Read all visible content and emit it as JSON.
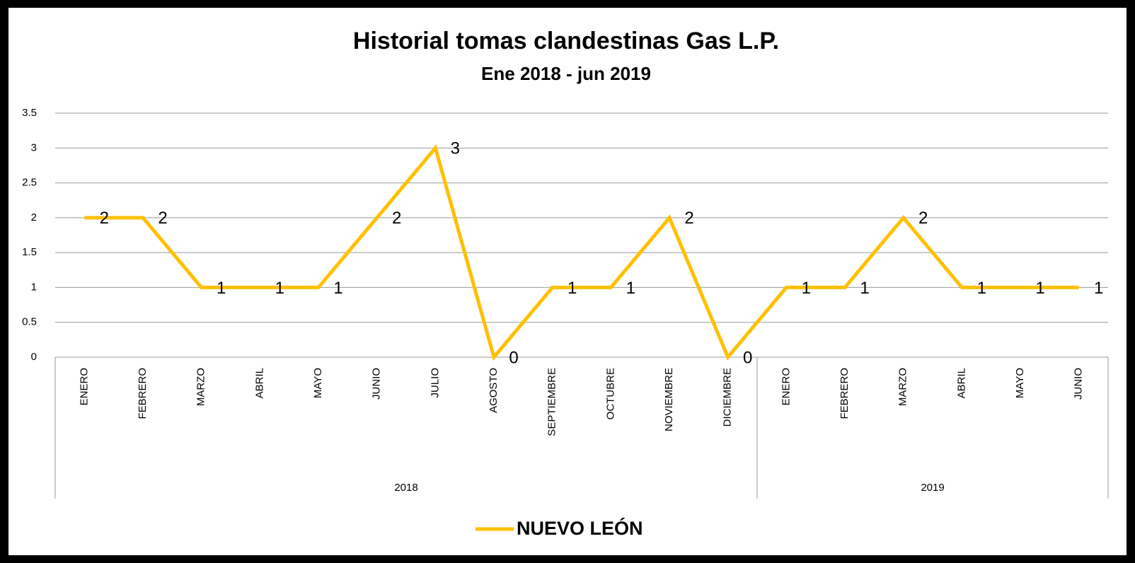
{
  "chart_data": {
    "type": "line",
    "title": "Historial tomas clandestinas Gas L.P.",
    "subtitle": "Ene 2018 - jun 2019",
    "category_groups": [
      {
        "label": "2018",
        "categories": [
          "ENERO",
          "FEBRERO",
          "MARZO",
          "ABRIL",
          "MAYO",
          "JUNIO",
          "JULIO",
          "AGOSTO",
          "SEPTIEMBRE",
          "OCTUBRE",
          "NOVIEMBRE",
          "DICIEMBRE"
        ]
      },
      {
        "label": "2019",
        "categories": [
          "ENERO",
          "FEBRERO",
          "MARZO",
          "ABRIL",
          "MAYO",
          "JUNIO"
        ]
      }
    ],
    "series": [
      {
        "name": "NUEVO LEÓN",
        "color": "#ffc000",
        "values": [
          2,
          2,
          1,
          1,
          1,
          2,
          3,
          0,
          1,
          1,
          2,
          0,
          1,
          1,
          2,
          1,
          1,
          1
        ]
      }
    ],
    "ylim": [
      0,
      3.5
    ],
    "yticks": [
      0,
      0.5,
      1,
      1.5,
      2,
      2.5,
      3,
      3.5
    ],
    "grid": true,
    "legend": "bottom"
  }
}
